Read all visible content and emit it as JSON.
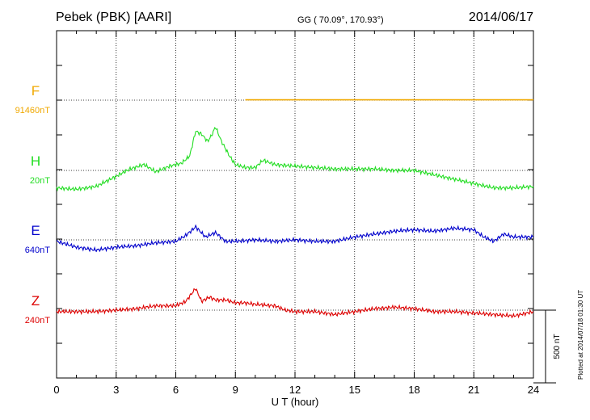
{
  "header": {
    "station": "Pebek (PBK)  [AARI]",
    "coords": "GG ( 70.09°, 170.93°)",
    "date": "2014/06/17"
  },
  "plotted_note": "Plotted at 2014/07/18 01:30 UT",
  "chart_data": {
    "type": "line",
    "title": "Pebek (PBK)  [AARI]",
    "xlabel": "U T (hour)",
    "xlim": [
      0,
      24
    ],
    "x_ticks": [
      0,
      3,
      6,
      9,
      12,
      15,
      18,
      21,
      24
    ],
    "x_tick_labels": [
      "0",
      "3",
      "6",
      "9",
      "12",
      "15",
      "18",
      "21",
      "24"
    ],
    "y_unit": "nT",
    "grid": true,
    "scale_bar": {
      "value": 500,
      "label": "500 nT"
    },
    "y_range_nT_relative_to_baselines": [
      -860,
      1030
    ],
    "series": [
      {
        "name": "F",
        "baseline_label": "91460nT",
        "color": "#f0a800",
        "points": [
          [
            9.5,
            2
          ],
          [
            24,
            2
          ]
        ]
      },
      {
        "name": "H",
        "baseline_label": "20nT",
        "color": "#22dd22",
        "points": [
          [
            0,
            -120
          ],
          [
            1,
            -130
          ],
          [
            2,
            -110
          ],
          [
            3,
            -40
          ],
          [
            3.7,
            10
          ],
          [
            4.4,
            40
          ],
          [
            5,
            -10
          ],
          [
            5.7,
            30
          ],
          [
            6.3,
            50
          ],
          [
            6.7,
            100
          ],
          [
            7,
            270
          ],
          [
            7.3,
            250
          ],
          [
            7.6,
            200
          ],
          [
            7.8,
            240
          ],
          [
            8,
            300
          ],
          [
            8.3,
            200
          ],
          [
            8.7,
            100
          ],
          [
            9,
            40
          ],
          [
            9.5,
            20
          ],
          [
            10,
            20
          ],
          [
            10.4,
            70
          ],
          [
            11,
            40
          ],
          [
            12,
            30
          ],
          [
            13,
            20
          ],
          [
            14,
            10
          ],
          [
            15,
            10
          ],
          [
            16,
            10
          ],
          [
            17,
            0
          ],
          [
            18,
            0
          ],
          [
            19,
            -30
          ],
          [
            20,
            -60
          ],
          [
            21,
            -90
          ],
          [
            22,
            -120
          ],
          [
            23,
            -120
          ],
          [
            24,
            -110
          ]
        ]
      },
      {
        "name": "E",
        "baseline_label": "640nT",
        "color": "#0000cc",
        "points": [
          [
            0,
            -10
          ],
          [
            1,
            -50
          ],
          [
            2,
            -70
          ],
          [
            3,
            -50
          ],
          [
            4,
            -40
          ],
          [
            5,
            -20
          ],
          [
            6,
            -10
          ],
          [
            6.5,
            30
          ],
          [
            7,
            90
          ],
          [
            7.5,
            20
          ],
          [
            8,
            50
          ],
          [
            8.5,
            -10
          ],
          [
            9,
            -10
          ],
          [
            10,
            0
          ],
          [
            11,
            -10
          ],
          [
            12,
            0
          ],
          [
            13,
            -10
          ],
          [
            14,
            -10
          ],
          [
            15,
            20
          ],
          [
            16,
            40
          ],
          [
            17,
            60
          ],
          [
            18,
            70
          ],
          [
            19,
            60
          ],
          [
            20,
            80
          ],
          [
            21,
            70
          ],
          [
            21.5,
            20
          ],
          [
            22,
            -10
          ],
          [
            22.5,
            40
          ],
          [
            23,
            20
          ],
          [
            24,
            20
          ]
        ]
      },
      {
        "name": "Z",
        "baseline_label": "240nT",
        "color": "#dd0000",
        "points": [
          [
            0,
            -10
          ],
          [
            1,
            -10
          ],
          [
            2,
            -10
          ],
          [
            3,
            0
          ],
          [
            4,
            10
          ],
          [
            5,
            30
          ],
          [
            6,
            30
          ],
          [
            6.5,
            60
          ],
          [
            7,
            150
          ],
          [
            7.3,
            60
          ],
          [
            7.7,
            90
          ],
          [
            8,
            70
          ],
          [
            8.5,
            70
          ],
          [
            9,
            50
          ],
          [
            9.5,
            50
          ],
          [
            10,
            40
          ],
          [
            11,
            30
          ],
          [
            11.5,
            0
          ],
          [
            12,
            -10
          ],
          [
            13,
            -10
          ],
          [
            14,
            -30
          ],
          [
            15,
            -10
          ],
          [
            16,
            10
          ],
          [
            17,
            20
          ],
          [
            18,
            10
          ],
          [
            19,
            -10
          ],
          [
            20,
            -10
          ],
          [
            21,
            -20
          ],
          [
            22,
            -30
          ],
          [
            23,
            -40
          ],
          [
            24,
            -10
          ]
        ]
      }
    ]
  }
}
